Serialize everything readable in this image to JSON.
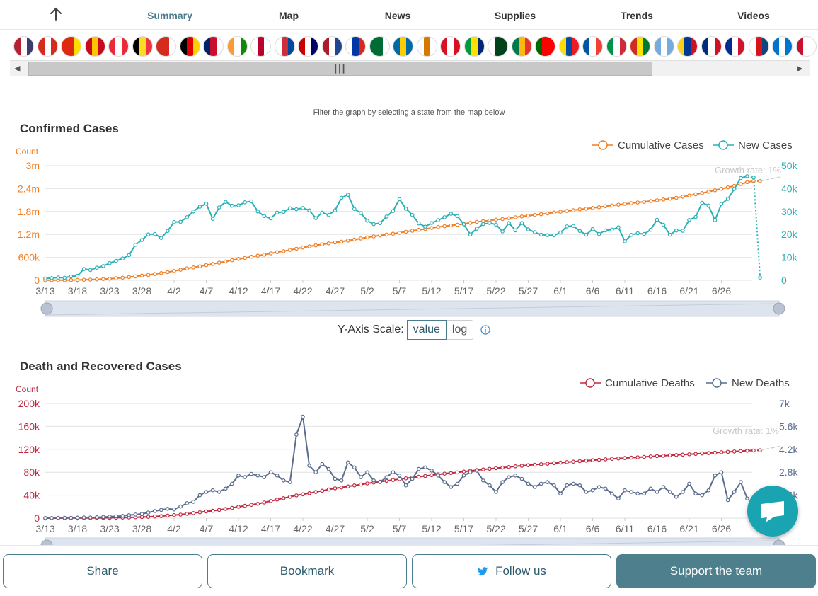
{
  "nav": {
    "items": [
      {
        "label": "Summary",
        "active": true
      },
      {
        "label": "Map"
      },
      {
        "label": "News"
      },
      {
        "label": "Supplies"
      },
      {
        "label": "Trends"
      },
      {
        "label": "Videos"
      }
    ]
  },
  "flags": [
    "us-flag",
    "canada-flag",
    "china-flag",
    "spain-flag",
    "austria-flag",
    "belgium-flag",
    "switzerland-flag",
    "germany-flag",
    "uk-flag",
    "india-flag",
    "japan-flag",
    "south-korea-flag",
    "malaysia-flag",
    "netherlands-flag",
    "russia-flag",
    "saudi-arabia-flag",
    "sweden-flag",
    "cyprus-flag",
    "peru-flag",
    "brazil-flag",
    "pakistan-flag",
    "south-africa-flag",
    "portugal-flag",
    "ecuador-flag",
    "france-flag",
    "italy-flag",
    "bolivia-flag",
    "argentina-flag",
    "colombia-flag",
    "costa-rica-flag",
    "cuba-flag",
    "czechia-flag",
    "honduras-flag",
    "next-flag"
  ],
  "hint": "Filter the graph by selecting a state from the map below",
  "scale": {
    "label": "Y-Axis Scale:",
    "value": "value",
    "log": "log"
  },
  "colors": {
    "cumulative_cases": "#f07d24",
    "new_cases": "#2ab0b5",
    "cumulative_deaths": "#c0293f",
    "new_deaths": "#5b6d8f",
    "accent": "#4a7c8c"
  },
  "buttons": {
    "share": "Share",
    "bookmark": "Bookmark",
    "follow": "Follow us",
    "support": "Support the team"
  },
  "chart_data": [
    {
      "type": "line",
      "title": "Confirmed Cases",
      "ylabel": "Count",
      "x_ticks": [
        "3/13",
        "3/18",
        "3/23",
        "3/28",
        "4/2",
        "4/7",
        "4/12",
        "4/17",
        "4/22",
        "4/27",
        "5/2",
        "5/7",
        "5/12",
        "5/17",
        "5/22",
        "5/27",
        "6/1",
        "6/6",
        "6/11",
        "6/16",
        "6/21",
        "6/26"
      ],
      "left_ticks": [
        "0",
        "600k",
        "1.2m",
        "1.8m",
        "2.4m",
        "3m"
      ],
      "right_ticks": [
        "0",
        "10k",
        "20k",
        "30k",
        "40k",
        "50k"
      ],
      "ylim_left": [
        0,
        3000000
      ],
      "ylim_right": [
        0,
        50000
      ],
      "annotation": "Growth rate: 1%",
      "series": [
        {
          "name": "Cumulative Cases",
          "axis": "left",
          "values": [
            2000,
            3000,
            4000,
            5000,
            7000,
            10000,
            14000,
            19000,
            25000,
            33000,
            43000,
            54000,
            69000,
            85000,
            104000,
            124000,
            140000,
            163000,
            188000,
            213000,
            245000,
            276000,
            311000,
            337000,
            367000,
            396000,
            428000,
            462000,
            493000,
            526000,
            560000,
            586000,
            616000,
            644000,
            671000,
            703000,
            735000,
            762000,
            792000,
            825000,
            860000,
            887000,
            915000,
            940000,
            966000,
            990000,
            1012000,
            1039000,
            1065000,
            1095000,
            1122000,
            1148000,
            1174000,
            1197000,
            1218000,
            1245000,
            1270000,
            1297000,
            1320000,
            1343000,
            1370000,
            1394000,
            1415000,
            1436000,
            1453000,
            1477000,
            1502000,
            1529000,
            1547000,
            1565000,
            1587000,
            1601000,
            1625000,
            1649000,
            1671000,
            1690000,
            1709000,
            1730000,
            1750000,
            1773000,
            1792000,
            1813000,
            1831000,
            1855000,
            1873000,
            1893000,
            1912000,
            1939000,
            1955000,
            1978000,
            2000000,
            2017000,
            2037000,
            2054000,
            2075000,
            2095000,
            2115000,
            2136000,
            2160000,
            2188000,
            2218000,
            2252000,
            2282000,
            2316000,
            2355000,
            2394000,
            2432000,
            2470000,
            2518000,
            2566000,
            2595000,
            2596000
          ]
        },
        {
          "name": "New Cases",
          "axis": "right",
          "values": [
            800,
            1000,
            1200,
            1100,
            1700,
            2000,
            4900,
            4500,
            5500,
            6200,
            7500,
            8500,
            9500,
            11000,
            15500,
            17600,
            20000,
            20200,
            18500,
            21500,
            25400,
            25500,
            27500,
            30000,
            32100,
            33400,
            26800,
            31800,
            34200,
            32500,
            32700,
            34000,
            34400,
            30000,
            28000,
            27000,
            29500,
            29800,
            31400,
            31000,
            31500,
            30500,
            27100,
            29500,
            28500,
            30500,
            36000,
            37300,
            31100,
            29300,
            26000,
            24500,
            24900,
            27800,
            30200,
            35400,
            31200,
            28500,
            24800,
            23400,
            25000,
            26200,
            27500,
            29000,
            28000,
            24400,
            20000,
            22500,
            24500,
            25000,
            24300,
            21300,
            25000,
            21800,
            25000,
            22200,
            21000,
            19900,
            19700,
            19600,
            20800,
            23500,
            23700,
            21500,
            19900,
            22300,
            20200,
            21800,
            22100,
            23100,
            17000,
            19800,
            20500,
            20200,
            22000,
            26400,
            24200,
            19900,
            21700,
            21600,
            26300,
            27600,
            33800,
            32600,
            26200,
            33300,
            35500,
            39800,
            44600,
            45400,
            44800,
            1200
          ]
        }
      ]
    },
    {
      "type": "line",
      "title": "Death and Recovered Cases",
      "ylabel": "Count",
      "x_ticks": [
        "3/13",
        "3/18",
        "3/23",
        "3/28",
        "4/2",
        "4/7",
        "4/12",
        "4/17",
        "4/22",
        "4/27",
        "5/2",
        "5/7",
        "5/12",
        "5/17",
        "5/22",
        "5/27",
        "6/1",
        "6/6",
        "6/11",
        "6/16",
        "6/21",
        "6/26"
      ],
      "left_ticks": [
        "0",
        "40k",
        "80k",
        "120k",
        "160k",
        "200k"
      ],
      "right_ticks": [
        "0",
        "1.4k",
        "2.8k",
        "4.2k",
        "5.6k",
        "7k"
      ],
      "ylim_left": [
        0,
        200000
      ],
      "ylim_right": [
        0,
        7000
      ],
      "annotation": "Growth rate: 1%",
      "series": [
        {
          "name": "Cumulative Deaths",
          "axis": "left",
          "values": [
            40,
            50,
            60,
            80,
            100,
            150,
            200,
            260,
            340,
            440,
            560,
            730,
            930,
            1200,
            1600,
            2000,
            2400,
            3000,
            3600,
            4400,
            5300,
            6200,
            7500,
            8800,
            10200,
            11700,
            12800,
            14300,
            16000,
            17800,
            19700,
            21500,
            23200,
            25000,
            27300,
            29800,
            32300,
            34800,
            37200,
            39600,
            41600,
            43400,
            45500,
            47800,
            49900,
            52000,
            53500,
            55200,
            57000,
            58700,
            60500,
            62100,
            63600,
            65000,
            66500,
            68000,
            69400,
            70900,
            72200,
            73500,
            75000,
            76300,
            77500,
            78600,
            79800,
            81200,
            82500,
            83800,
            85000,
            86100,
            87200,
            88200,
            89300,
            90400,
            91400,
            92300,
            93200,
            94100,
            95000,
            95900,
            96800,
            97700,
            98500,
            99400,
            100200,
            101000,
            101800,
            102600,
            103400,
            104100,
            104800,
            105500,
            106100,
            106800,
            107500,
            108200,
            108800,
            109500,
            110100,
            110700,
            111400,
            112000,
            112800,
            113500,
            114200,
            114900,
            115600,
            116200,
            116900,
            117500,
            118000,
            118300
          ]
        },
        {
          "name": "New Deaths",
          "axis": "right",
          "values": [
            10,
            10,
            20,
            20,
            20,
            30,
            40,
            40,
            50,
            70,
            90,
            110,
            140,
            180,
            220,
            260,
            340,
            430,
            500,
            570,
            530,
            710,
            910,
            1000,
            1400,
            1600,
            1700,
            1600,
            1800,
            2100,
            2600,
            2500,
            2700,
            2600,
            2500,
            2800,
            2600,
            2300,
            2200,
            5100,
            6200,
            3200,
            2800,
            3300,
            3000,
            2400,
            2300,
            3400,
            3100,
            2500,
            2800,
            2300,
            2200,
            2500,
            2800,
            2600,
            2000,
            2400,
            3000,
            3100,
            2900,
            2600,
            2200,
            1900,
            2100,
            2600,
            2800,
            2900,
            2300,
            2000,
            1600,
            2200,
            2500,
            2600,
            2400,
            2100,
            1900,
            2100,
            2200,
            2000,
            1500,
            2000,
            2100,
            2000,
            1600,
            1700,
            1900,
            1800,
            1500,
            1200,
            1700,
            1600,
            1500,
            1500,
            1800,
            1600,
            1900,
            1600,
            1300,
            1600,
            2100,
            1500,
            1400,
            1700,
            2600,
            2800,
            1100,
            1600,
            2200,
            1200,
            800,
            200
          ]
        }
      ]
    }
  ]
}
